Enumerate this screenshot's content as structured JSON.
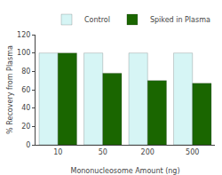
{
  "chart_data": {
    "type": "bar",
    "categories": [
      "10",
      "50",
      "200",
      "500"
    ],
    "series": [
      {
        "name": "Control",
        "color": "#d6f5f5",
        "values": [
          100,
          100,
          100,
          100
        ]
      },
      {
        "name": "Spiked in Plasma",
        "color": "#1a6600",
        "values": [
          100,
          78,
          70,
          67
        ]
      }
    ],
    "xlabel": "Mononucleosome Amount (ng)",
    "ylabel": "% Recovery from Plasma",
    "ylim": [
      0,
      120
    ],
    "yticks": [
      0,
      20,
      40,
      60,
      80,
      100,
      120
    ],
    "grid": false,
    "legend": "upper right"
  }
}
